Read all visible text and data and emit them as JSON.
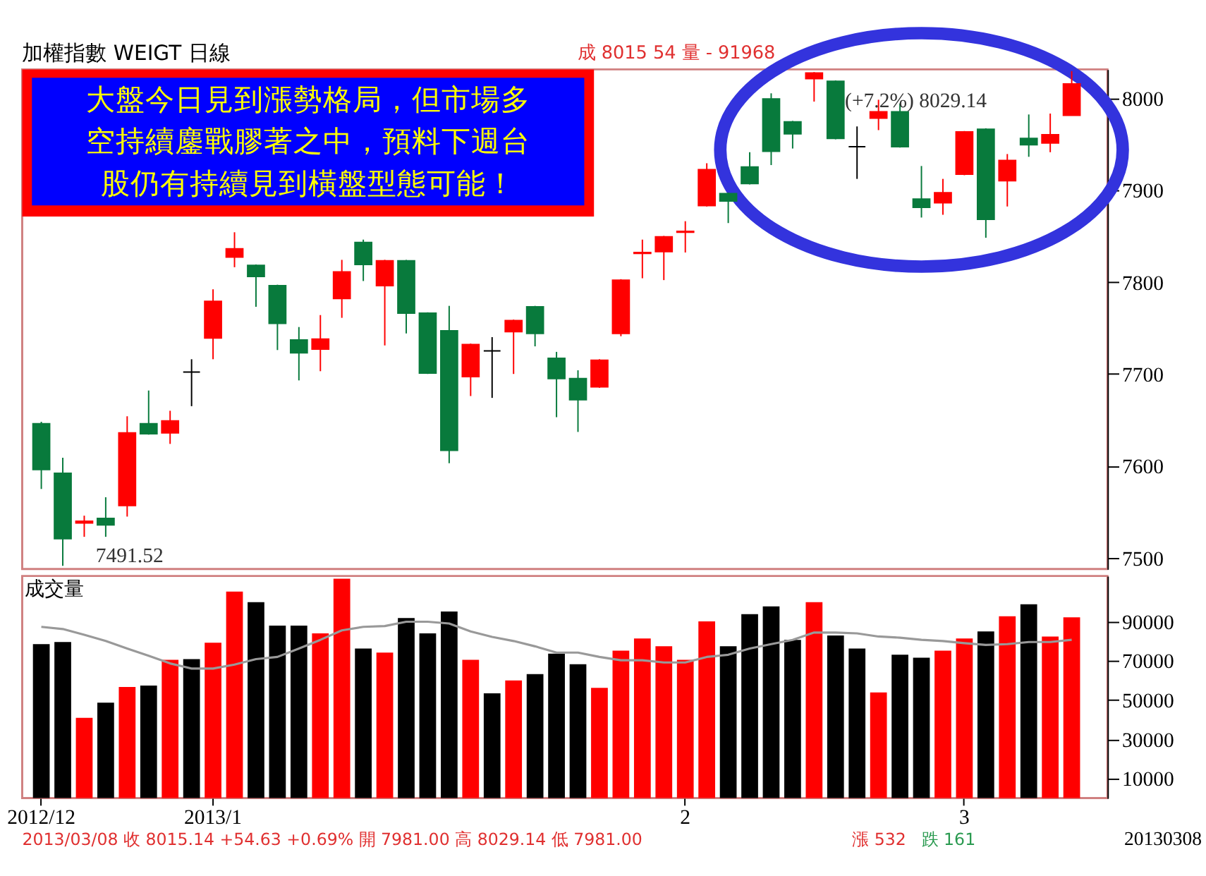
{
  "chart_data": [
    {
      "type": "candlestick",
      "title": "加權指數 WEIGT 日線",
      "categories": [
        null,
        null,
        null,
        null,
        null,
        null,
        null,
        null,
        null,
        null,
        null,
        null,
        null,
        null,
        null,
        null,
        null,
        null,
        null,
        null,
        null,
        null,
        null,
        null,
        null,
        null,
        null,
        null,
        null,
        null,
        null,
        null,
        null,
        null,
        null,
        null,
        null,
        null,
        null,
        null,
        null,
        null,
        null,
        null,
        null,
        null,
        null,
        null,
        null
      ],
      "ohlc": [
        [
          7646,
          7648,
          7575,
          7596
        ],
        [
          7592,
          7609,
          7491.52,
          7521
        ],
        [
          7538,
          7546,
          7523,
          7540
        ],
        [
          7543,
          7566,
          7523,
          7536
        ],
        [
          7557,
          7654,
          7545,
          7636
        ],
        [
          7646,
          7682,
          7634,
          7635
        ],
        [
          7636,
          7660,
          7624,
          7649
        ],
        [
          7702,
          7716,
          7665,
          7702
        ],
        [
          7739,
          7792,
          7716,
          7779
        ],
        [
          7827,
          7854,
          7816,
          7836
        ],
        [
          7818,
          7819,
          7773,
          7806
        ],
        [
          7796,
          7797,
          7726,
          7755
        ],
        [
          7737,
          7751,
          7693,
          7723
        ],
        [
          7727,
          7764,
          7703,
          7738
        ],
        [
          7782,
          7824,
          7761,
          7811
        ],
        [
          7843,
          7846,
          7801,
          7819
        ],
        [
          7796,
          7824,
          7731,
          7823
        ],
        [
          7823,
          7824,
          7744,
          7766
        ],
        [
          7766,
          7767,
          7700,
          7701
        ],
        [
          7747,
          7774,
          7603,
          7617
        ],
        [
          7697,
          7733,
          7676,
          7732
        ],
        [
          7725,
          7740,
          7674,
          7725
        ],
        [
          7746,
          7759,
          7700,
          7758
        ],
        [
          7773,
          7774,
          7730,
          7744
        ],
        [
          7717,
          7724,
          7653,
          7695
        ],
        [
          7695,
          7704,
          7637,
          7672
        ],
        [
          7686,
          7716,
          7685,
          7715
        ],
        [
          7744,
          7803,
          7741,
          7802
        ],
        [
          7831,
          7846,
          7804,
          7832
        ],
        [
          7833,
          7850,
          7802,
          7849
        ],
        [
          7854,
          7866,
          7832,
          7855
        ],
        [
          7883,
          7929,
          7882,
          7922
        ],
        [
          7896,
          7897,
          7864,
          7888
        ],
        [
          7925,
          7941,
          7906,
          7907
        ],
        [
          7999,
          8005,
          7927,
          7942
        ],
        [
          7974,
          7975,
          7945,
          7961
        ],
        [
          8021,
          8028,
          7996,
          8027
        ],
        [
          8018,
          8019,
          7955,
          7956
        ],
        [
          7947,
          7969,
          7912,
          7947
        ],
        [
          7978,
          7998,
          7965,
          7985
        ],
        [
          7985,
          7994,
          7946,
          7947
        ],
        [
          7890,
          7926,
          7870,
          7881
        ],
        [
          7886,
          7912,
          7873,
          7897
        ],
        [
          7917,
          7964,
          7916,
          7963
        ],
        [
          7966,
          7967,
          7848,
          7868
        ],
        [
          7910,
          7939,
          7882,
          7932
        ],
        [
          7956,
          7982,
          7936,
          7949
        ],
        [
          7951,
          7983,
          7941,
          7960
        ],
        [
          7981.0,
          8029.14,
          7981.0,
          8015.14
        ]
      ],
      "colors": [
        "#087a3c",
        "#087a3c",
        "#ff0000",
        "#087a3c",
        "#ff0000",
        "#087a3c",
        "#ff0000",
        "#000000",
        "#ff0000",
        "#ff0000",
        "#087a3c",
        "#087a3c",
        "#087a3c",
        "#ff0000",
        "#ff0000",
        "#087a3c",
        "#ff0000",
        "#087a3c",
        "#087a3c",
        "#087a3c",
        "#ff0000",
        "#000000",
        "#ff0000",
        "#087a3c",
        "#087a3c",
        "#087a3c",
        "#ff0000",
        "#ff0000",
        "#ff0000",
        "#ff0000",
        "#ff0000",
        "#ff0000",
        "#087a3c",
        "#087a3c",
        "#087a3c",
        "#087a3c",
        "#ff0000",
        "#087a3c",
        "#000000",
        "#ff0000",
        "#087a3c",
        "#087a3c",
        "#ff0000",
        "#ff0000",
        "#087a3c",
        "#ff0000",
        "#087a3c",
        "#ff0000",
        "#ff0000"
      ],
      "ylim": [
        7488,
        8031
      ],
      "yticks": [
        7500,
        7600,
        7700,
        7800,
        7900,
        8000
      ],
      "tick_labels": "y",
      "annotations": [
        "成 8015  54  量 -  91968",
        "大盤今日見到漲勢格局，但市場多空持續鏖戰膠著之中，預料下週台股仍有持續見到橫盤型態可能！",
        "7491.52",
        "(+7.2%) 8029.14"
      ]
    },
    {
      "type": "bar",
      "title": "成交量",
      "categories": [
        "2012/12",
        null,
        null,
        null,
        null,
        null,
        null,
        null,
        "2013/1",
        null,
        null,
        null,
        null,
        null,
        null,
        null,
        null,
        null,
        null,
        null,
        null,
        null,
        null,
        null,
        null,
        null,
        null,
        null,
        null,
        null,
        "2",
        null,
        null,
        null,
        null,
        null,
        null,
        null,
        null,
        null,
        null,
        null,
        null,
        "3",
        null,
        null,
        null,
        null,
        null
      ],
      "series": [
        {
          "type": "bar",
          "colors": [
            "#000000",
            "#000000",
            "#ff0000",
            "#000000",
            "#ff0000",
            "#000000",
            "#ff0000",
            "#000000",
            "#ff0000",
            "#ff0000",
            "#000000",
            "#000000",
            "#000000",
            "#ff0000",
            "#ff0000",
            "#000000",
            "#ff0000",
            "#000000",
            "#000000",
            "#000000",
            "#ff0000",
            "#000000",
            "#ff0000",
            "#000000",
            "#000000",
            "#000000",
            "#ff0000",
            "#ff0000",
            "#ff0000",
            "#ff0000",
            "#ff0000",
            "#ff0000",
            "#000000",
            "#000000",
            "#000000",
            "#000000",
            "#ff0000",
            "#000000",
            "#000000",
            "#ff0000",
            "#000000",
            "#000000",
            "#ff0000",
            "#ff0000",
            "#000000",
            "#ff0000",
            "#000000",
            "#ff0000",
            "#ff0000"
          ],
          "values": [
            78300,
            79400,
            40800,
            48500,
            56500,
            57200,
            70300,
            70700,
            79000,
            105100,
            99700,
            87700,
            87700,
            83800,
            111600,
            76100,
            74000,
            91600,
            83800,
            94900,
            70300,
            53300,
            59800,
            63100,
            73500,
            68100,
            56100,
            75000,
            81200,
            77200,
            70300,
            89900,
            77200,
            93600,
            97500,
            80500,
            99700,
            82700,
            76100,
            53700,
            72900,
            71400,
            75000,
            81200,
            84800,
            92500,
            98600,
            82200,
            92000
          ]
        },
        {
          "type": "line",
          "color": "#999999",
          "values": [
            87100,
            86000,
            83100,
            79900,
            76100,
            72400,
            68500,
            65900,
            65900,
            67900,
            70700,
            71800,
            76100,
            80500,
            85300,
            87100,
            87500,
            89700,
            89700,
            88800,
            84800,
            82000,
            79900,
            77200,
            74000,
            74000,
            71800,
            70100,
            70100,
            69000,
            69000,
            71800,
            72900,
            76100,
            78300,
            80500,
            84200,
            84200,
            83800,
            82200,
            81600,
            80500,
            79900,
            78800,
            77900,
            78300,
            79400,
            79400,
            80500
          ]
        }
      ],
      "ylim": [
        0,
        113000
      ],
      "yticks": [
        10000,
        30000,
        50000,
        70000,
        90000
      ],
      "annotations": [
        "2013/03/08   收 8015.14  +54.63  +0.69%  開 7981.00 高 8029.14 低 7981.00",
        "漲 532",
        "跌 161",
        "20130308"
      ]
    }
  ]
}
